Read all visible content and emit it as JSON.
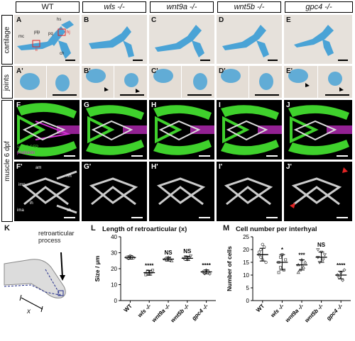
{
  "columns": [
    "WT",
    "wls -/-",
    "wnt9a -/-",
    "wnt5b -/-",
    "gpc4 -/-"
  ],
  "rows": [
    "cartilage",
    "joints",
    "muscle 6 dpf"
  ],
  "panel_letters": {
    "cartilage": [
      "A",
      "B",
      "C",
      "D",
      "E"
    ],
    "joints": [
      "A'",
      "B'",
      "C'",
      "D'",
      "E'"
    ],
    "muscle": [
      "F",
      "G",
      "H",
      "I",
      "J"
    ],
    "muscle_bw": [
      "F'",
      "G'",
      "H'",
      "I'",
      "J'"
    ]
  },
  "cartilage_labels": {
    "mc": "mc",
    "ptp": "ptp",
    "pq": "pq",
    "hs": "hs",
    "ch": "ch",
    "ii": "ii",
    "hj": "hj"
  },
  "fluor_legend": {
    "gfp": "sox10:GFP",
    "phalloidin": "phalloidin"
  },
  "muscle_labels": {
    "am": "am",
    "hh": "hh",
    "imp": "imp",
    "ih": "ih",
    "ima": "ima",
    "sh": "sh"
  },
  "panel_K": {
    "letter": "K",
    "label": "retroarticular process",
    "x_label": "x"
  },
  "colors": {
    "alcian": "#4aa3d6",
    "gfp": "#3fd12c",
    "phalloidin": "#d12fd1",
    "box_red": "#e02424",
    "arrow_red": "#e02424",
    "k_fill": "#dcdcdc",
    "k_dash": "#1f2a8a"
  },
  "chart_data": [
    {
      "letter": "L",
      "type": "scatter",
      "title": "Length of retroarticular (x)",
      "ylabel": "Size / μm",
      "categories": [
        "WT",
        "wls -/-",
        "wnt9a -/-",
        "wnt5b -/-",
        "gpc4 -/-"
      ],
      "ylim": [
        0,
        40
      ],
      "yticks": [
        0,
        10,
        20,
        30,
        40
      ],
      "means": [
        27,
        17.5,
        26,
        26.5,
        18
      ],
      "sd": [
        1,
        1.5,
        1.2,
        1.3,
        1.2
      ],
      "significance": [
        "",
        "****",
        "NS",
        "NS",
        "****"
      ],
      "points": [
        [
          27,
          26.5,
          28,
          27.5,
          26.8,
          27.2
        ],
        [
          17,
          18.5,
          16.5,
          17.8,
          19,
          16.2,
          18
        ],
        [
          26,
          25.5,
          27,
          26.3,
          24.8
        ],
        [
          26.5,
          27.5,
          25.8,
          26.8,
          28
        ],
        [
          18,
          17,
          19,
          18.4,
          16.8
        ]
      ]
    },
    {
      "letter": "M",
      "type": "scatter",
      "title": "Cell number per interhyal",
      "ylabel": "Number of cells",
      "categories": [
        "WT",
        "wls -/-",
        "wnt9a -/-",
        "wnt5b -/-",
        "gpc4 -/-"
      ],
      "ylim": [
        0,
        25
      ],
      "yticks": [
        0,
        5,
        10,
        15,
        20,
        25
      ],
      "means": [
        18,
        15,
        14,
        17,
        10
      ],
      "sd": [
        2.5,
        3,
        2,
        2,
        1.5
      ],
      "significance": [
        "",
        "*",
        "***",
        "NS",
        "****"
      ],
      "points": [
        [
          18,
          20,
          16,
          21,
          15,
          19,
          17,
          22
        ],
        [
          15,
          13,
          18,
          12,
          16,
          11,
          17
        ],
        [
          14,
          12,
          16,
          13,
          15,
          11
        ],
        [
          17,
          15,
          19,
          16,
          18,
          20
        ],
        [
          10,
          9,
          11,
          8,
          12,
          10
        ]
      ]
    }
  ]
}
